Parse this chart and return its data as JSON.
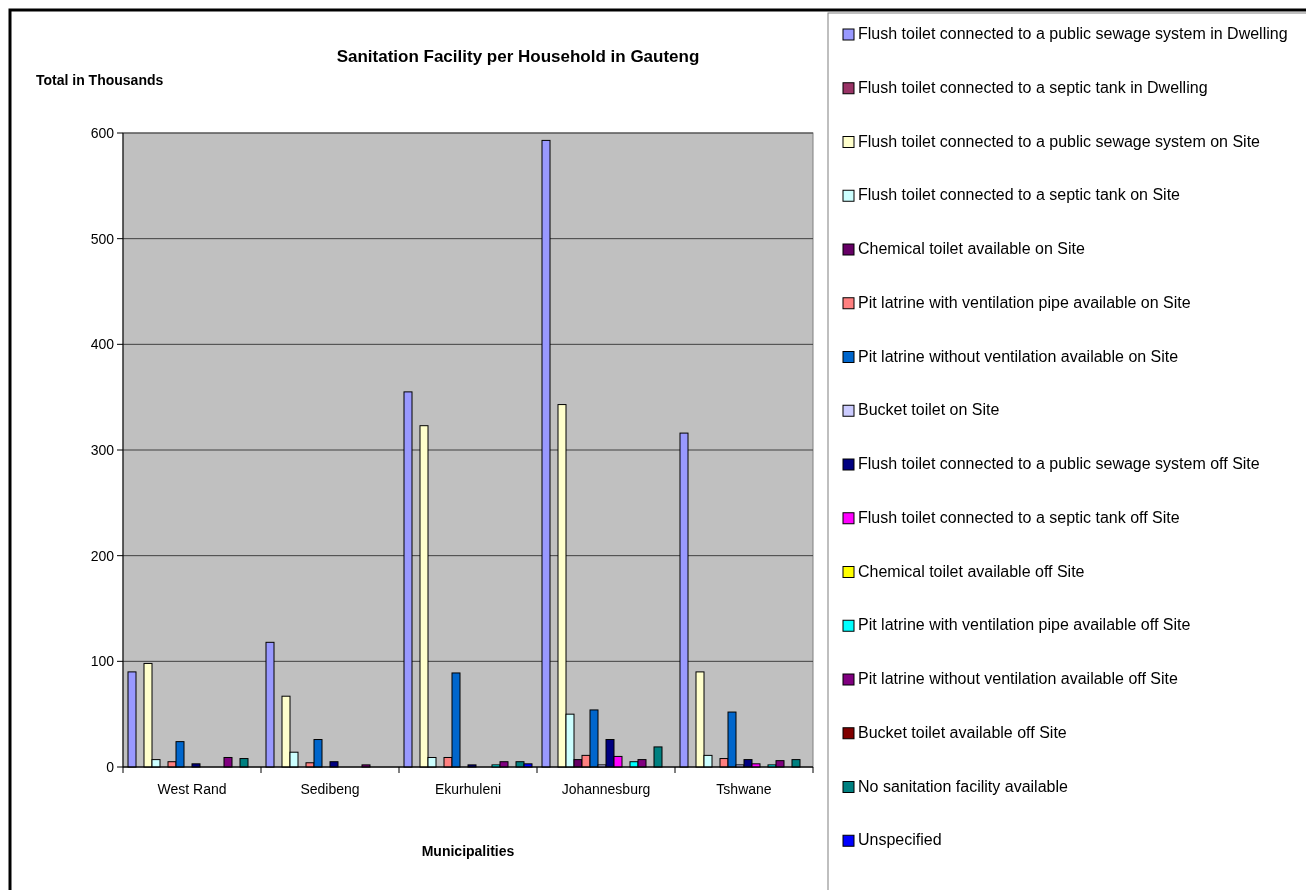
{
  "chart_data": {
    "type": "bar",
    "title": "Sanitation Facility per Household in Gauteng",
    "xlabel": "Municipalities",
    "ylabel": "Total in Thousands",
    "categories": [
      "West Rand",
      "Sedibeng",
      "Ekurhuleni",
      "Johannesburg",
      "Tshwane"
    ],
    "series": [
      {
        "name": "Flush toilet connected to a public sewage system in Dwelling",
        "color": "#9999ff",
        "values": [
          90,
          118,
          355,
          593,
          316
        ]
      },
      {
        "name": "Flush toilet connected to a septic tank in Dwelling",
        "color": "#993366",
        "values": [
          0,
          null,
          0,
          0,
          null
        ]
      },
      {
        "name": "Flush toilet connected to a public sewage system on Site",
        "color": "#ffffcc",
        "values": [
          98,
          67,
          323,
          343,
          90
        ]
      },
      {
        "name": "Flush toilet connected to a septic tank on Site",
        "color": "#ccffff",
        "values": [
          7,
          14,
          9,
          50,
          11
        ]
      },
      {
        "name": "Chemical toilet available on Site",
        "color": "#660066",
        "values": [
          0,
          0,
          0,
          7,
          null
        ]
      },
      {
        "name": "Pit latrine with ventilation pipe available on Site",
        "color": "#ff8080",
        "values": [
          5,
          4,
          9,
          11,
          8
        ]
      },
      {
        "name": "Pit latrine without ventilation available on Site",
        "color": "#0066cc",
        "values": [
          24,
          26,
          89,
          54,
          52
        ]
      },
      {
        "name": "Bucket toilet on Site",
        "color": "#ccccff",
        "values": [
          0,
          0,
          null,
          2,
          2
        ]
      },
      {
        "name": "Flush toilet connected to a public sewage system off Site",
        "color": "#000080",
        "values": [
          3,
          5,
          2,
          26,
          7
        ]
      },
      {
        "name": "Flush toilet connected to a septic tank off Site",
        "color": "#ff00ff",
        "values": [
          0,
          0,
          0,
          10,
          3
        ]
      },
      {
        "name": "Chemical toilet available off Site",
        "color": "#ffff00",
        "values": [
          0,
          0,
          0,
          null,
          0
        ]
      },
      {
        "name": "Pit latrine with ventilation pipe available off Site",
        "color": "#00ffff",
        "values": [
          0,
          0,
          2,
          5,
          2
        ]
      },
      {
        "name": "Pit latrine without ventilation available off Site",
        "color": "#800080",
        "values": [
          9,
          2,
          5,
          7,
          6
        ]
      },
      {
        "name": "Bucket toilet available off Site",
        "color": "#800000",
        "values": [
          0,
          0,
          0,
          0,
          0
        ]
      },
      {
        "name": "No sanitation facility available",
        "color": "#008080",
        "values": [
          8,
          0,
          5,
          19,
          7
        ]
      },
      {
        "name": "Unspecified",
        "color": "#0000ff",
        "values": [
          0,
          0,
          3,
          0,
          0
        ]
      }
    ],
    "ylim": [
      0,
      600
    ],
    "yticks": [
      0,
      100,
      200,
      300,
      400,
      500,
      600
    ],
    "grid": "y",
    "legend": "right"
  }
}
